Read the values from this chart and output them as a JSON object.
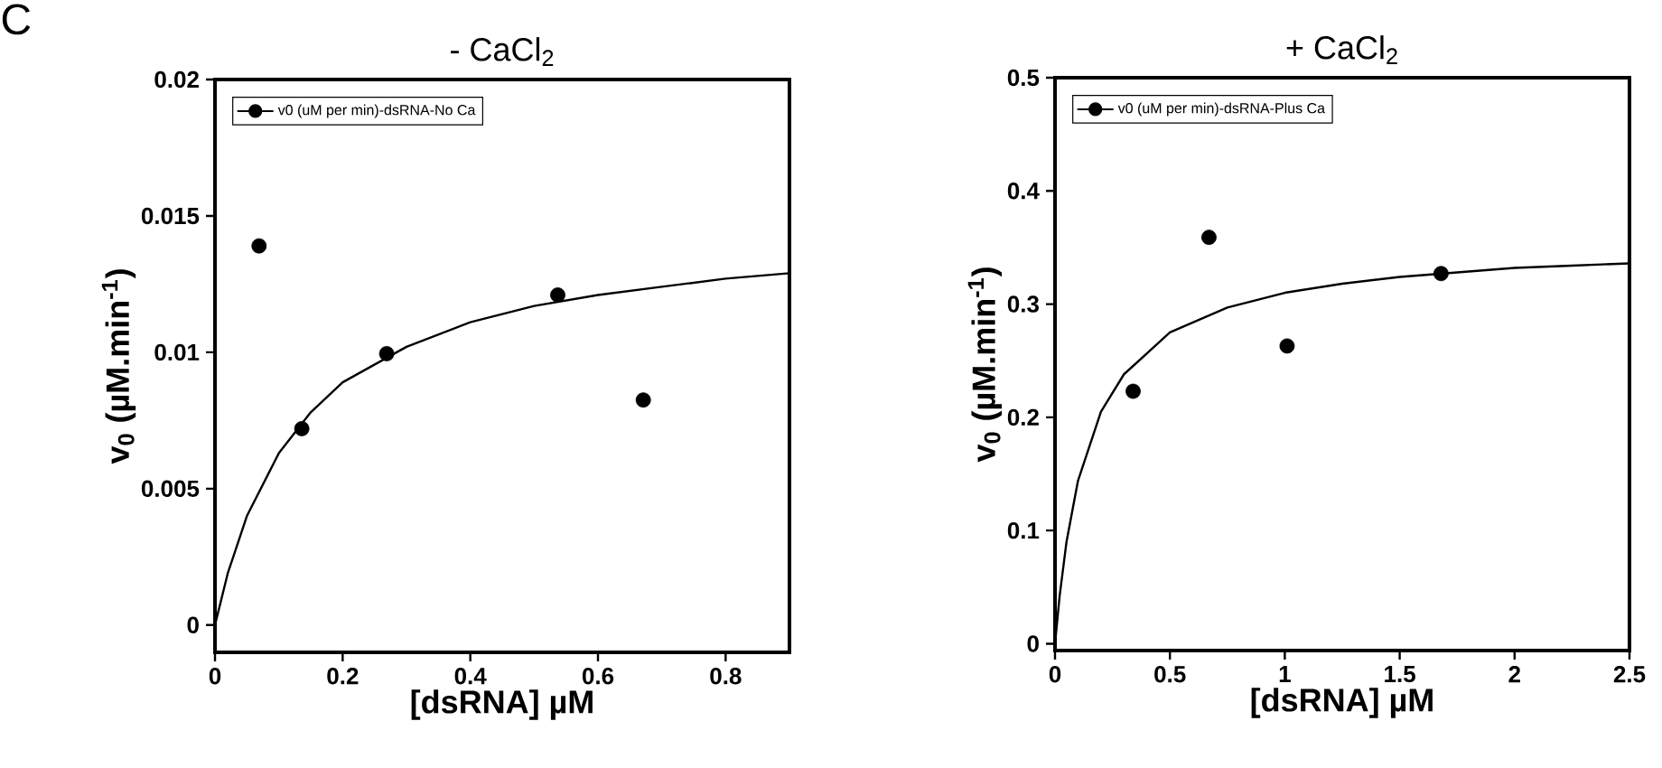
{
  "chart_data": [
    {
      "type": "scatter",
      "title": "- CaCl$_{2}$",
      "xlabel": "[dsRNA] µM",
      "ylabel": "v$_{0}$ (µM.min$^{-1}$)",
      "annotations": [
        "C"
      ],
      "xlim": [
        0,
        0.9
      ],
      "ylim": [
        -0.001,
        0.02
      ],
      "xticks": [
        0,
        0.2,
        0.4,
        0.6,
        0.8
      ],
      "yticks": [
        0,
        0.005,
        0.01,
        0.015,
        0.02
      ],
      "grid": false,
      "legend": "top left",
      "series": [
        {
          "name": "v0 (uM per min)-dsRNA-No Ca",
          "marker": "circle",
          "color": "#000000",
          "x": [
            0.069,
            0.136,
            0.269,
            0.537,
            0.671
          ],
          "values": [
            0.0139,
            0.0072,
            0.00995,
            0.0121,
            0.00825
          ]
        },
        {
          "type": "line",
          "marker": "none",
          "line_style": "solid",
          "color": "#000000",
          "x": [
            0,
            0.02,
            0.05,
            0.1,
            0.15,
            0.2,
            0.3,
            0.4,
            0.5,
            0.6,
            0.7,
            0.8,
            0.9
          ],
          "values": [
            0,
            0.0019,
            0.004,
            0.0063,
            0.0078,
            0.0089,
            0.0102,
            0.0111,
            0.0117,
            0.0121,
            0.0124,
            0.0127,
            0.0129
          ]
        }
      ]
    },
    {
      "type": "scatter",
      "title": "+ CaCl$_{2}$",
      "xlabel": "[dsRNA] µM",
      "ylabel": "v$_{0}$ (µM.min$^{-1}$)",
      "xlim": [
        0,
        2.5
      ],
      "ylim": [
        -0.006,
        0.5
      ],
      "xticks": [
        0,
        0.5,
        1,
        1.5,
        2,
        2.5
      ],
      "yticks": [
        0,
        0.1,
        0.2,
        0.3,
        0.4,
        0.5
      ],
      "grid": false,
      "legend": "top left",
      "series": [
        {
          "name": "v0 (uM per min)-dsRNA-Plus Ca",
          "marker": "circle",
          "color": "#000000",
          "x": [
            0.34,
            0.67,
            1.01,
            1.68
          ],
          "values": [
            0.223,
            0.359,
            0.263,
            0.327
          ]
        },
        {
          "type": "line",
          "marker": "none",
          "line_style": "solid",
          "color": "#000000",
          "x": [
            0,
            0.02,
            0.05,
            0.1,
            0.2,
            0.3,
            0.5,
            0.75,
            1.0,
            1.25,
            1.5,
            1.75,
            2.0,
            2.25,
            2.5
          ],
          "values": [
            0,
            0.042,
            0.09,
            0.144,
            0.205,
            0.238,
            0.275,
            0.297,
            0.31,
            0.318,
            0.324,
            0.328,
            0.332,
            0.334,
            0.336
          ]
        }
      ]
    }
  ]
}
